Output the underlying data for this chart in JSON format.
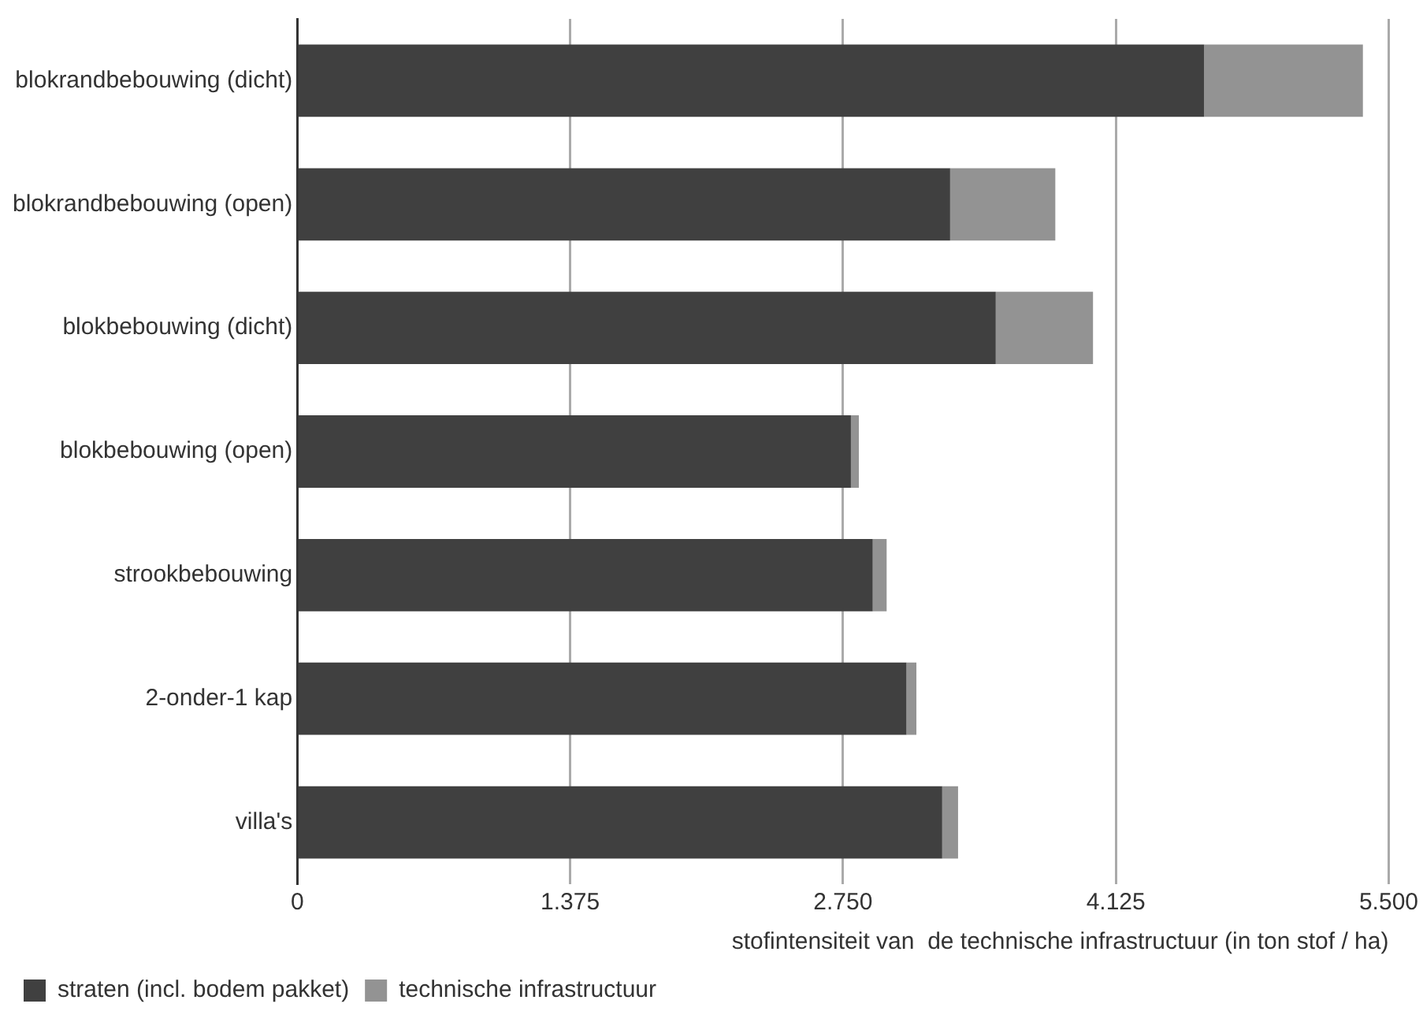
{
  "chart_data": {
    "type": "bar",
    "orientation": "horizontal",
    "stacked": true,
    "xlabel": "stofintensiteit van  de technische infrastructuur (in ton stof / ha)",
    "categories": [
      "blokrandbebouwing (dicht)",
      "blokrandbebouwing (open)",
      "blokbebouwing (dicht)",
      "blokbebouwing (open)",
      "strookbebouwing",
      "2-onder-1 kap",
      "villa's"
    ],
    "series": [
      {
        "name": "straten (incl. bodem pakket)",
        "color": "#404040",
        "values": [
          4570,
          3290,
          3520,
          2790,
          2900,
          3070,
          3250
        ]
      },
      {
        "name": "technische infrastructuur",
        "color": "#939393",
        "values": [
          800,
          530,
          490,
          40,
          70,
          50,
          80
        ]
      }
    ],
    "xlim": [
      0,
      5500
    ],
    "xticks": [
      0,
      {
        "value": 1375,
        "label": "1.375"
      },
      {
        "value": 2750,
        "label": "2.750"
      },
      {
        "value": 4125,
        "label": "4.125"
      },
      {
        "value": 5500,
        "label": "5.500"
      }
    ],
    "grid": "x",
    "legend": "bottom"
  }
}
